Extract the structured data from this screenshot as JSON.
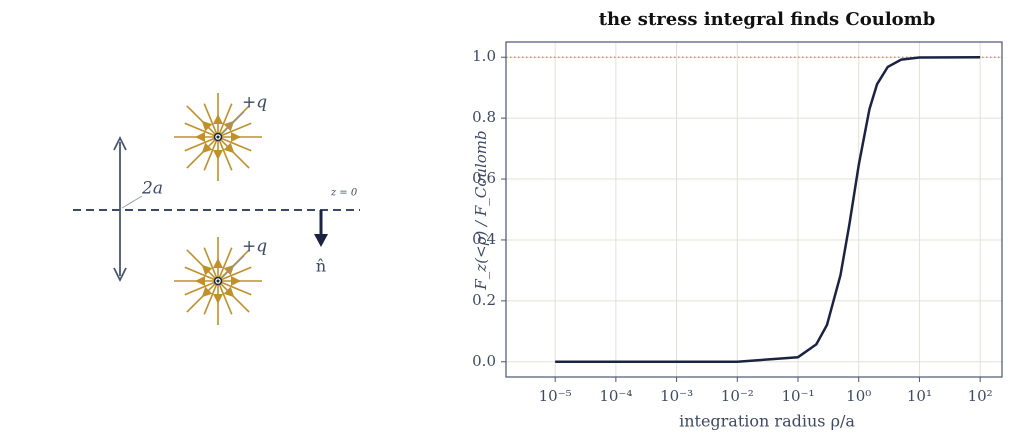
{
  "chart_data": {
    "type": "line",
    "title": "the stress integral finds Coulomb",
    "x_label": "integration radius ρ/a",
    "y_label": "F_z(<ρ) / F_Coulomb",
    "x": [
      1e-05,
      0.0001,
      0.001,
      0.01,
      0.1,
      0.2,
      0.3,
      0.5,
      0.7,
      1,
      1.5,
      2,
      3,
      5,
      10,
      100
    ],
    "values": [
      0,
      0,
      0,
      0,
      0.015,
      0.057,
      0.121,
      0.284,
      0.45,
      0.646,
      0.829,
      0.911,
      0.968,
      0.992,
      0.999,
      1.0
    ],
    "color": "#1b2340",
    "x_log": true,
    "xlim": [
      1.55e-06,
      229
    ],
    "ylim": [
      -0.05,
      1.05
    ],
    "xticks": [
      {
        "value": 1e-05,
        "label": "10⁻⁵"
      },
      {
        "value": 0.0001,
        "label": "10⁻⁴"
      },
      {
        "value": 0.001,
        "label": "10⁻³"
      },
      {
        "value": 0.01,
        "label": "10⁻²"
      },
      {
        "value": 0.1,
        "label": "10⁻¹"
      },
      {
        "value": 1,
        "label": "10⁰"
      },
      {
        "value": 10,
        "label": "10¹"
      },
      {
        "value": 100,
        "label": "10²"
      }
    ],
    "yticks": [
      {
        "value": 0,
        "label": "0.0"
      },
      {
        "value": 0.2,
        "label": "0.2"
      },
      {
        "value": 0.4,
        "label": "0.4"
      },
      {
        "value": 0.6,
        "label": "0.6"
      },
      {
        "value": 0.8,
        "label": "0.8"
      },
      {
        "value": 1,
        "label": "1.0"
      }
    ],
    "reference_line": {
      "value": 1,
      "color": "#c0902a"
    },
    "grid": true
  },
  "diagram": {
    "charge_top": "+q",
    "charge_bottom": "+q",
    "separation": "2a",
    "plane": "z = 0",
    "normal": "n̂"
  }
}
